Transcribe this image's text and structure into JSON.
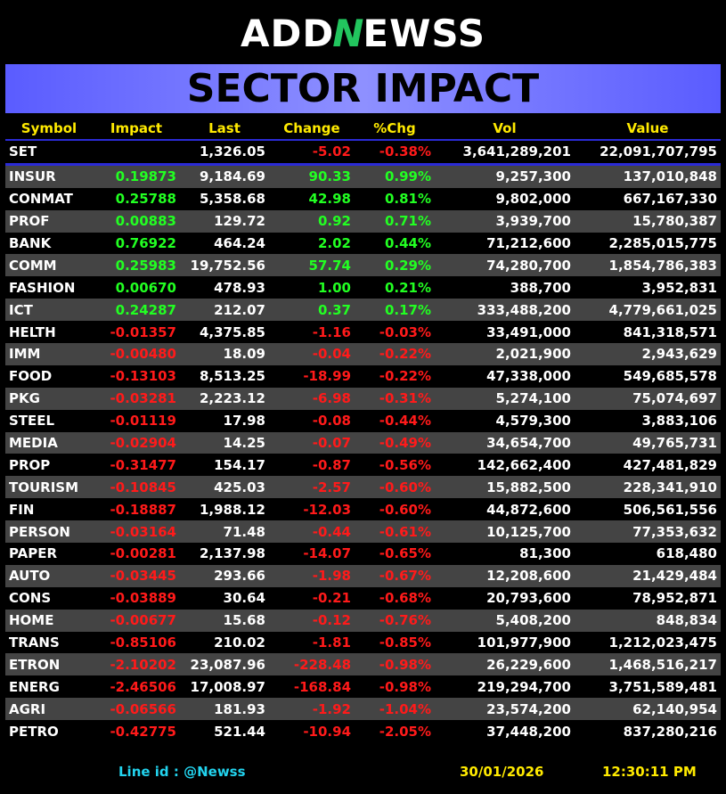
{
  "logo": {
    "part1": "ADD",
    "part2": "N",
    "part3": "EWSS"
  },
  "banner_title": "SECTOR IMPACT",
  "columns": [
    "Symbol",
    "Impact",
    "Last",
    "Change",
    "%Chg",
    "Vol",
    "Value"
  ],
  "set_row": {
    "symbol": "SET",
    "impact": "",
    "last": "1,326.05",
    "change": "-5.02",
    "pct": "-0.38%",
    "vol": "3,641,289,201",
    "value": "22,091,707,795"
  },
  "rows": [
    {
      "symbol": "INSUR",
      "impact": "0.19873",
      "last": "9,184.69",
      "change": "90.33",
      "pct": "0.99%",
      "vol": "9,257,300",
      "value": "137,010,848"
    },
    {
      "symbol": "CONMAT",
      "impact": "0.25788",
      "last": "5,358.68",
      "change": "42.98",
      "pct": "0.81%",
      "vol": "9,802,000",
      "value": "667,167,330"
    },
    {
      "symbol": "PROF",
      "impact": "0.00883",
      "last": "129.72",
      "change": "0.92",
      "pct": "0.71%",
      "vol": "3,939,700",
      "value": "15,780,387"
    },
    {
      "symbol": "BANK",
      "impact": "0.76922",
      "last": "464.24",
      "change": "2.02",
      "pct": "0.44%",
      "vol": "71,212,600",
      "value": "2,285,015,775"
    },
    {
      "symbol": "COMM",
      "impact": "0.25983",
      "last": "19,752.56",
      "change": "57.74",
      "pct": "0.29%",
      "vol": "74,280,700",
      "value": "1,854,786,383"
    },
    {
      "symbol": "FASHION",
      "impact": "0.00670",
      "last": "478.93",
      "change": "1.00",
      "pct": "0.21%",
      "vol": "388,700",
      "value": "3,952,831"
    },
    {
      "symbol": "ICT",
      "impact": "0.24287",
      "last": "212.07",
      "change": "0.37",
      "pct": "0.17%",
      "vol": "333,488,200",
      "value": "4,779,661,025"
    },
    {
      "symbol": "HELTH",
      "impact": "-0.01357",
      "last": "4,375.85",
      "change": "-1.16",
      "pct": "-0.03%",
      "vol": "33,491,000",
      "value": "841,318,571"
    },
    {
      "symbol": "IMM",
      "impact": "-0.00480",
      "last": "18.09",
      "change": "-0.04",
      "pct": "-0.22%",
      "vol": "2,021,900",
      "value": "2,943,629"
    },
    {
      "symbol": "FOOD",
      "impact": "-0.13103",
      "last": "8,513.25",
      "change": "-18.99",
      "pct": "-0.22%",
      "vol": "47,338,000",
      "value": "549,685,578"
    },
    {
      "symbol": "PKG",
      "impact": "-0.03281",
      "last": "2,223.12",
      "change": "-6.98",
      "pct": "-0.31%",
      "vol": "5,274,100",
      "value": "75,074,697"
    },
    {
      "symbol": "STEEL",
      "impact": "-0.01119",
      "last": "17.98",
      "change": "-0.08",
      "pct": "-0.44%",
      "vol": "4,579,300",
      "value": "3,883,106"
    },
    {
      "symbol": "MEDIA",
      "impact": "-0.02904",
      "last": "14.25",
      "change": "-0.07",
      "pct": "-0.49%",
      "vol": "34,654,700",
      "value": "49,765,731"
    },
    {
      "symbol": "PROP",
      "impact": "-0.31477",
      "last": "154.17",
      "change": "-0.87",
      "pct": "-0.56%",
      "vol": "142,662,400",
      "value": "427,481,829"
    },
    {
      "symbol": "TOURISM",
      "impact": "-0.10845",
      "last": "425.03",
      "change": "-2.57",
      "pct": "-0.60%",
      "vol": "15,882,500",
      "value": "228,341,910"
    },
    {
      "symbol": "FIN",
      "impact": "-0.18887",
      "last": "1,988.12",
      "change": "-12.03",
      "pct": "-0.60%",
      "vol": "44,872,600",
      "value": "506,561,556"
    },
    {
      "symbol": "PERSON",
      "impact": "-0.03164",
      "last": "71.48",
      "change": "-0.44",
      "pct": "-0.61%",
      "vol": "10,125,700",
      "value": "77,353,632"
    },
    {
      "symbol": "PAPER",
      "impact": "-0.00281",
      "last": "2,137.98",
      "change": "-14.07",
      "pct": "-0.65%",
      "vol": "81,300",
      "value": "618,480"
    },
    {
      "symbol": "AUTO",
      "impact": "-0.03445",
      "last": "293.66",
      "change": "-1.98",
      "pct": "-0.67%",
      "vol": "12,208,600",
      "value": "21,429,484"
    },
    {
      "symbol": "CONS",
      "impact": "-0.03889",
      "last": "30.64",
      "change": "-0.21",
      "pct": "-0.68%",
      "vol": "20,793,600",
      "value": "78,952,871"
    },
    {
      "symbol": "HOME",
      "impact": "-0.00677",
      "last": "15.68",
      "change": "-0.12",
      "pct": "-0.76%",
      "vol": "5,408,200",
      "value": "848,834"
    },
    {
      "symbol": "TRANS",
      "impact": "-0.85106",
      "last": "210.02",
      "change": "-1.81",
      "pct": "-0.85%",
      "vol": "101,977,900",
      "value": "1,212,023,475"
    },
    {
      "symbol": "ETRON",
      "impact": "-2.10202",
      "last": "23,087.96",
      "change": "-228.48",
      "pct": "-0.98%",
      "vol": "26,229,600",
      "value": "1,468,516,217"
    },
    {
      "symbol": "ENERG",
      "impact": "-2.46506",
      "last": "17,008.97",
      "change": "-168.84",
      "pct": "-0.98%",
      "vol": "219,294,700",
      "value": "3,751,589,481"
    },
    {
      "symbol": "AGRI",
      "impact": "-0.06566",
      "last": "181.93",
      "change": "-1.92",
      "pct": "-1.04%",
      "vol": "23,574,200",
      "value": "62,140,954"
    },
    {
      "symbol": "PETRO",
      "impact": "-0.42775",
      "last": "521.44",
      "change": "-10.94",
      "pct": "-2.05%",
      "vol": "37,448,200",
      "value": "837,280,216"
    }
  ],
  "footer": {
    "line_id": "Line id  : @Newss",
    "date": "30/01/2026",
    "time": "12:30:11 PM"
  },
  "colors": {
    "positive": "#22ff22",
    "negative": "#ff1a1a",
    "header": "#ffea00",
    "banner": "#6f71ff",
    "line_id": "#22d3ee"
  }
}
